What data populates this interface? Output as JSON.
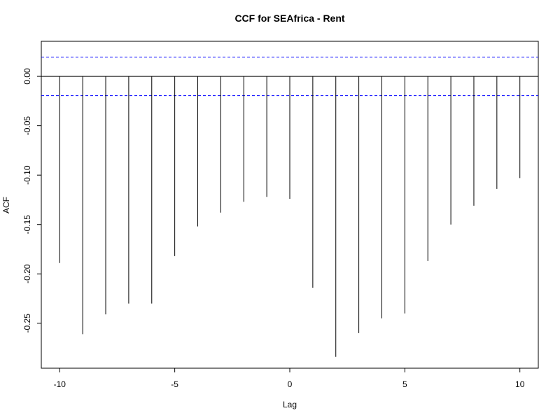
{
  "chart_data": {
    "type": "bar",
    "title": "CCF for SEAfrica - Rent",
    "xlabel": "Lag",
    "ylabel": "ACF",
    "x": [
      -10,
      -9,
      -8,
      -7,
      -6,
      -5,
      -4,
      -3,
      -2,
      -1,
      0,
      1,
      2,
      3,
      4,
      5,
      6,
      7,
      8,
      9,
      10
    ],
    "values": [
      -0.189,
      -0.261,
      -0.241,
      -0.23,
      -0.23,
      -0.182,
      -0.152,
      -0.138,
      -0.127,
      -0.122,
      -0.124,
      -0.214,
      -0.284,
      -0.26,
      -0.245,
      -0.24,
      -0.187,
      -0.15,
      -0.131,
      -0.114,
      -0.103
    ],
    "xlim": [
      -10.8,
      10.8
    ],
    "ylim": [
      -0.2955,
      0.0355
    ],
    "x_ticks": [
      -10,
      -5,
      0,
      5,
      10
    ],
    "x_tick_labels": [
      "-10",
      "-5",
      "0",
      "5",
      "10"
    ],
    "y_ticks": [
      0.0,
      -0.05,
      -0.1,
      -0.15,
      -0.2,
      -0.25
    ],
    "y_tick_labels": [
      "0.00",
      "-0.05",
      "-0.10",
      "-0.15",
      "-0.20",
      "-0.25"
    ],
    "confidence_band": 0.0195,
    "zero_line": 0,
    "colors": {
      "bars": "#000000",
      "confidence": "#0000ff",
      "frame": "#000000"
    },
    "grid": false,
    "legend": "none"
  }
}
